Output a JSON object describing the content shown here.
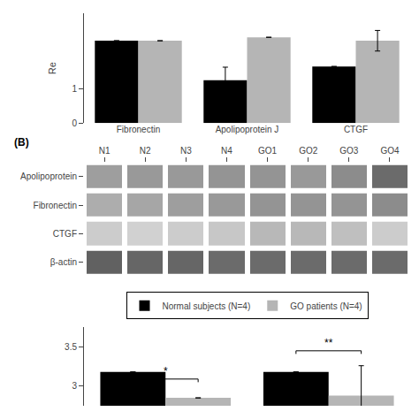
{
  "chart_data": [
    {
      "type": "bar",
      "categories": [
        "Fibronectin",
        "Apolipoprotein J",
        "CTGF"
      ],
      "ylabel": "Re",
      "ylim": [
        0,
        3.2
      ],
      "yticks": [
        0,
        1
      ],
      "grid": false,
      "series": [
        {
          "name": "Normal subjects (N=4)",
          "color": "#000000",
          "values": [
            2.4,
            1.25,
            1.65
          ],
          "errors": [
            0.0,
            0.38,
            0.0
          ]
        },
        {
          "name": "GO patients (N=4)",
          "color": "#b5b5b5",
          "values": [
            2.4,
            2.5,
            2.4
          ],
          "errors": [
            0.0,
            0.0,
            0.3
          ]
        }
      ]
    },
    {
      "type": "heatmap",
      "title": "(B)",
      "categories": [
        "N1",
        "N2",
        "N3",
        "N4",
        "GO1",
        "GO2",
        "GO3",
        "GO4"
      ],
      "zlim": [
        0,
        1
      ],
      "series": [
        {
          "name": "Apolipoprotein",
          "values": [
            0.62,
            0.6,
            0.6,
            0.58,
            0.58,
            0.6,
            0.55,
            0.42
          ]
        },
        {
          "name": "Fibronectin",
          "values": [
            0.68,
            0.65,
            0.62,
            0.6,
            0.58,
            0.58,
            0.58,
            0.55
          ]
        },
        {
          "name": "CTGF",
          "values": [
            0.8,
            0.82,
            0.8,
            0.78,
            0.72,
            0.72,
            0.75,
            0.8
          ]
        },
        {
          "name": "β-actin",
          "values": [
            0.38,
            0.4,
            0.4,
            0.42,
            0.42,
            0.42,
            0.42,
            0.42
          ]
        }
      ]
    },
    {
      "type": "bar",
      "categories": [
        null,
        null
      ],
      "ylim": [
        2.75,
        3.75
      ],
      "yticks": [
        3.0,
        3.5
      ],
      "grid": false,
      "legend": "top",
      "series": [
        {
          "name": "Normal subjects (N=4)",
          "color": "#000000",
          "values": [
            3.18,
            3.18
          ],
          "errors": [
            null,
            0
          ]
        },
        {
          "name": "GO patients (N=4)",
          "color": "#b5b5b5",
          "values": [
            2.85,
            2.88
          ],
          "errors": [
            null,
            0.38
          ]
        }
      ],
      "annotations": [
        {
          "x": 0,
          "y": 3.09,
          "text": "*"
        },
        {
          "x": 1,
          "y": 3.45,
          "text": "**"
        }
      ]
    }
  ]
}
